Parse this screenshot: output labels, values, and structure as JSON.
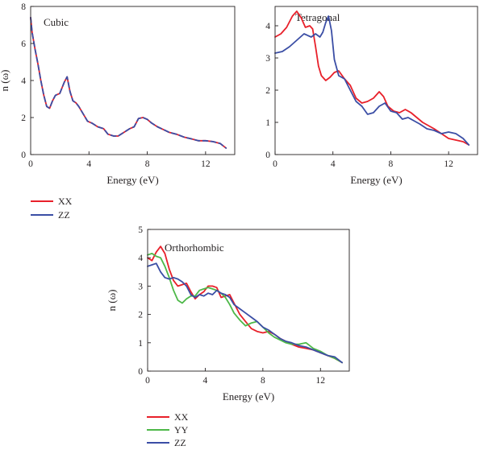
{
  "colors": {
    "xx": "#e8202a",
    "yy": "#4db848",
    "zz": "#3b4ea5"
  },
  "chart_data": [
    {
      "type": "line",
      "title": "Cubic",
      "xlabel": "Energy (eV)",
      "ylabel": "n (ω)",
      "xlim": [
        0,
        14
      ],
      "ylim": [
        0,
        8
      ],
      "xticks": [
        0,
        4,
        8,
        12
      ],
      "yticks": [
        0,
        2,
        4,
        6,
        8
      ],
      "legend_position": "below",
      "series": [
        {
          "name": "XX",
          "color": "#e8202a",
          "dashed": false,
          "x": [
            0,
            0.1,
            0.3,
            0.5,
            0.7,
            0.9,
            1.1,
            1.3,
            1.5,
            1.7,
            2.0,
            2.3,
            2.5,
            2.7,
            2.9,
            3.1,
            3.3,
            3.6,
            3.9,
            4.2,
            4.6,
            5.0,
            5.3,
            5.7,
            6.0,
            6.4,
            6.8,
            7.1,
            7.4,
            7.7,
            8.0,
            8.3,
            8.7,
            9.1,
            9.5,
            10.0,
            10.5,
            11.0,
            11.5,
            12.0,
            12.5,
            13.0,
            13.4
          ],
          "y": [
            7.4,
            6.6,
            5.7,
            4.9,
            4.0,
            3.2,
            2.6,
            2.5,
            2.9,
            3.2,
            3.3,
            3.9,
            4.2,
            3.4,
            2.9,
            2.8,
            2.6,
            2.2,
            1.8,
            1.7,
            1.5,
            1.4,
            1.1,
            1.0,
            1.0,
            1.2,
            1.4,
            1.5,
            1.95,
            2.0,
            1.9,
            1.7,
            1.5,
            1.35,
            1.2,
            1.1,
            0.95,
            0.85,
            0.75,
            0.75,
            0.7,
            0.6,
            0.35
          ]
        },
        {
          "name": "ZZ",
          "color": "#3b4ea5",
          "dashed": true,
          "x": [
            0,
            0.1,
            0.3,
            0.5,
            0.7,
            0.9,
            1.1,
            1.3,
            1.5,
            1.7,
            2.0,
            2.3,
            2.5,
            2.7,
            2.9,
            3.1,
            3.3,
            3.6,
            3.9,
            4.2,
            4.6,
            5.0,
            5.3,
            5.7,
            6.0,
            6.4,
            6.8,
            7.1,
            7.4,
            7.7,
            8.0,
            8.3,
            8.7,
            9.1,
            9.5,
            10.0,
            10.5,
            11.0,
            11.5,
            12.0,
            12.5,
            13.0,
            13.4
          ],
          "y": [
            7.4,
            6.6,
            5.7,
            4.9,
            4.0,
            3.2,
            2.6,
            2.5,
            2.9,
            3.2,
            3.3,
            3.9,
            4.2,
            3.4,
            2.9,
            2.8,
            2.6,
            2.2,
            1.8,
            1.7,
            1.5,
            1.4,
            1.1,
            1.0,
            1.0,
            1.2,
            1.4,
            1.5,
            1.95,
            2.0,
            1.9,
            1.7,
            1.5,
            1.35,
            1.2,
            1.1,
            0.95,
            0.85,
            0.75,
            0.75,
            0.7,
            0.6,
            0.35
          ]
        }
      ]
    },
    {
      "type": "line",
      "title": "Tetragonal",
      "xlabel": "Energy (eV)",
      "ylabel": "",
      "xlim": [
        0,
        14
      ],
      "ylim": [
        0,
        4.6
      ],
      "xticks": [
        0,
        4,
        8,
        12
      ],
      "yticks": [
        0,
        1,
        2,
        3,
        4
      ],
      "series": [
        {
          "name": "",
          "color": "#e8202a",
          "dashed": false,
          "x": [
            0,
            0.4,
            0.8,
            1.2,
            1.5,
            1.8,
            2.1,
            2.4,
            2.6,
            2.8,
            3.0,
            3.2,
            3.5,
            3.8,
            4.1,
            4.4,
            4.8,
            5.2,
            5.6,
            6.0,
            6.4,
            6.8,
            7.2,
            7.5,
            7.8,
            8.2,
            8.6,
            9.0,
            9.4,
            9.8,
            10.2,
            10.6,
            11.0,
            11.5,
            12.0,
            12.5,
            13.0,
            13.4
          ],
          "y": [
            3.65,
            3.75,
            3.95,
            4.3,
            4.45,
            4.25,
            3.95,
            4.0,
            3.9,
            3.35,
            2.75,
            2.45,
            2.3,
            2.4,
            2.55,
            2.6,
            2.35,
            2.15,
            1.75,
            1.6,
            1.65,
            1.75,
            1.95,
            1.8,
            1.5,
            1.35,
            1.3,
            1.4,
            1.3,
            1.15,
            1.0,
            0.9,
            0.8,
            0.65,
            0.5,
            0.45,
            0.4,
            0.3
          ]
        },
        {
          "name": "",
          "color": "#3b4ea5",
          "dashed": false,
          "x": [
            0,
            0.5,
            1.0,
            1.5,
            2.0,
            2.5,
            2.8,
            3.1,
            3.3,
            3.5,
            3.7,
            3.9,
            4.1,
            4.4,
            4.8,
            5.2,
            5.6,
            6.0,
            6.4,
            6.8,
            7.2,
            7.6,
            8.0,
            8.4,
            8.8,
            9.2,
            9.6,
            10.0,
            10.5,
            11.0,
            11.5,
            12.0,
            12.5,
            13.0,
            13.4
          ],
          "y": [
            3.15,
            3.2,
            3.35,
            3.55,
            3.75,
            3.65,
            3.75,
            3.65,
            3.8,
            4.1,
            4.3,
            3.85,
            2.95,
            2.45,
            2.35,
            2.0,
            1.65,
            1.5,
            1.25,
            1.3,
            1.5,
            1.6,
            1.35,
            1.3,
            1.1,
            1.15,
            1.05,
            0.95,
            0.8,
            0.75,
            0.65,
            0.7,
            0.65,
            0.5,
            0.3
          ]
        }
      ]
    },
    {
      "type": "line",
      "title": "Orthorhombic",
      "xlabel": "Energy (eV)",
      "ylabel": "n (ω)",
      "xlim": [
        0,
        14
      ],
      "ylim": [
        0,
        5
      ],
      "xticks": [
        0,
        4,
        8,
        12
      ],
      "yticks": [
        0,
        1,
        2,
        3,
        4,
        5
      ],
      "legend_position": "below",
      "series": [
        {
          "name": "XX",
          "color": "#e8202a",
          "dashed": false,
          "x": [
            0,
            0.3,
            0.6,
            0.9,
            1.2,
            1.5,
            1.8,
            2.1,
            2.4,
            2.7,
            3.0,
            3.3,
            3.6,
            3.9,
            4.2,
            4.5,
            4.8,
            5.1,
            5.4,
            5.7,
            6.0,
            6.4,
            6.8,
            7.2,
            7.6,
            8.0,
            8.4,
            8.8,
            9.2,
            9.6,
            10.0,
            10.5,
            11.0,
            11.5,
            12.0,
            12.5,
            13.0,
            13.5
          ],
          "y": [
            4.0,
            3.9,
            4.2,
            4.4,
            4.15,
            3.6,
            3.2,
            3.0,
            3.05,
            3.1,
            2.8,
            2.55,
            2.7,
            2.8,
            3.0,
            3.0,
            2.95,
            2.6,
            2.65,
            2.7,
            2.4,
            2.0,
            1.75,
            1.5,
            1.4,
            1.35,
            1.4,
            1.3,
            1.15,
            1.05,
            0.95,
            0.85,
            0.8,
            0.75,
            0.65,
            0.55,
            0.45,
            0.3
          ]
        },
        {
          "name": "YY",
          "color": "#4db848",
          "dashed": false,
          "x": [
            0,
            0.3,
            0.6,
            0.9,
            1.2,
            1.5,
            1.8,
            2.1,
            2.4,
            2.7,
            3.0,
            3.3,
            3.6,
            3.9,
            4.2,
            4.5,
            4.8,
            5.1,
            5.4,
            5.7,
            6.0,
            6.4,
            6.8,
            7.2,
            7.6,
            8.0,
            8.4,
            8.8,
            9.2,
            9.6,
            10.0,
            10.5,
            11.0,
            11.5,
            12.0,
            12.5,
            13.0,
            13.5
          ],
          "y": [
            4.1,
            4.15,
            4.05,
            4.0,
            3.7,
            3.3,
            2.85,
            2.5,
            2.4,
            2.55,
            2.65,
            2.65,
            2.85,
            2.9,
            2.95,
            2.9,
            2.85,
            2.75,
            2.6,
            2.35,
            2.05,
            1.8,
            1.6,
            1.7,
            1.75,
            1.55,
            1.35,
            1.2,
            1.1,
            1.0,
            0.95,
            0.95,
            1.0,
            0.8,
            0.7,
            0.55,
            0.45,
            0.3
          ]
        },
        {
          "name": "ZZ",
          "color": "#3b4ea5",
          "dashed": false,
          "x": [
            0,
            0.3,
            0.6,
            0.9,
            1.2,
            1.5,
            1.8,
            2.1,
            2.4,
            2.7,
            3.0,
            3.3,
            3.6,
            3.9,
            4.2,
            4.5,
            4.8,
            5.1,
            5.4,
            5.7,
            6.0,
            6.4,
            6.8,
            7.2,
            7.6,
            8.0,
            8.4,
            8.8,
            9.2,
            9.6,
            10.0,
            10.5,
            11.0,
            11.5,
            12.0,
            12.5,
            13.0,
            13.5
          ],
          "y": [
            3.7,
            3.75,
            3.8,
            3.5,
            3.3,
            3.25,
            3.3,
            3.25,
            3.15,
            3.0,
            2.7,
            2.6,
            2.7,
            2.65,
            2.75,
            2.7,
            2.85,
            2.75,
            2.7,
            2.6,
            2.35,
            2.2,
            2.05,
            1.9,
            1.75,
            1.55,
            1.45,
            1.3,
            1.15,
            1.05,
            1.0,
            0.9,
            0.85,
            0.75,
            0.65,
            0.55,
            0.5,
            0.3
          ]
        }
      ]
    }
  ]
}
